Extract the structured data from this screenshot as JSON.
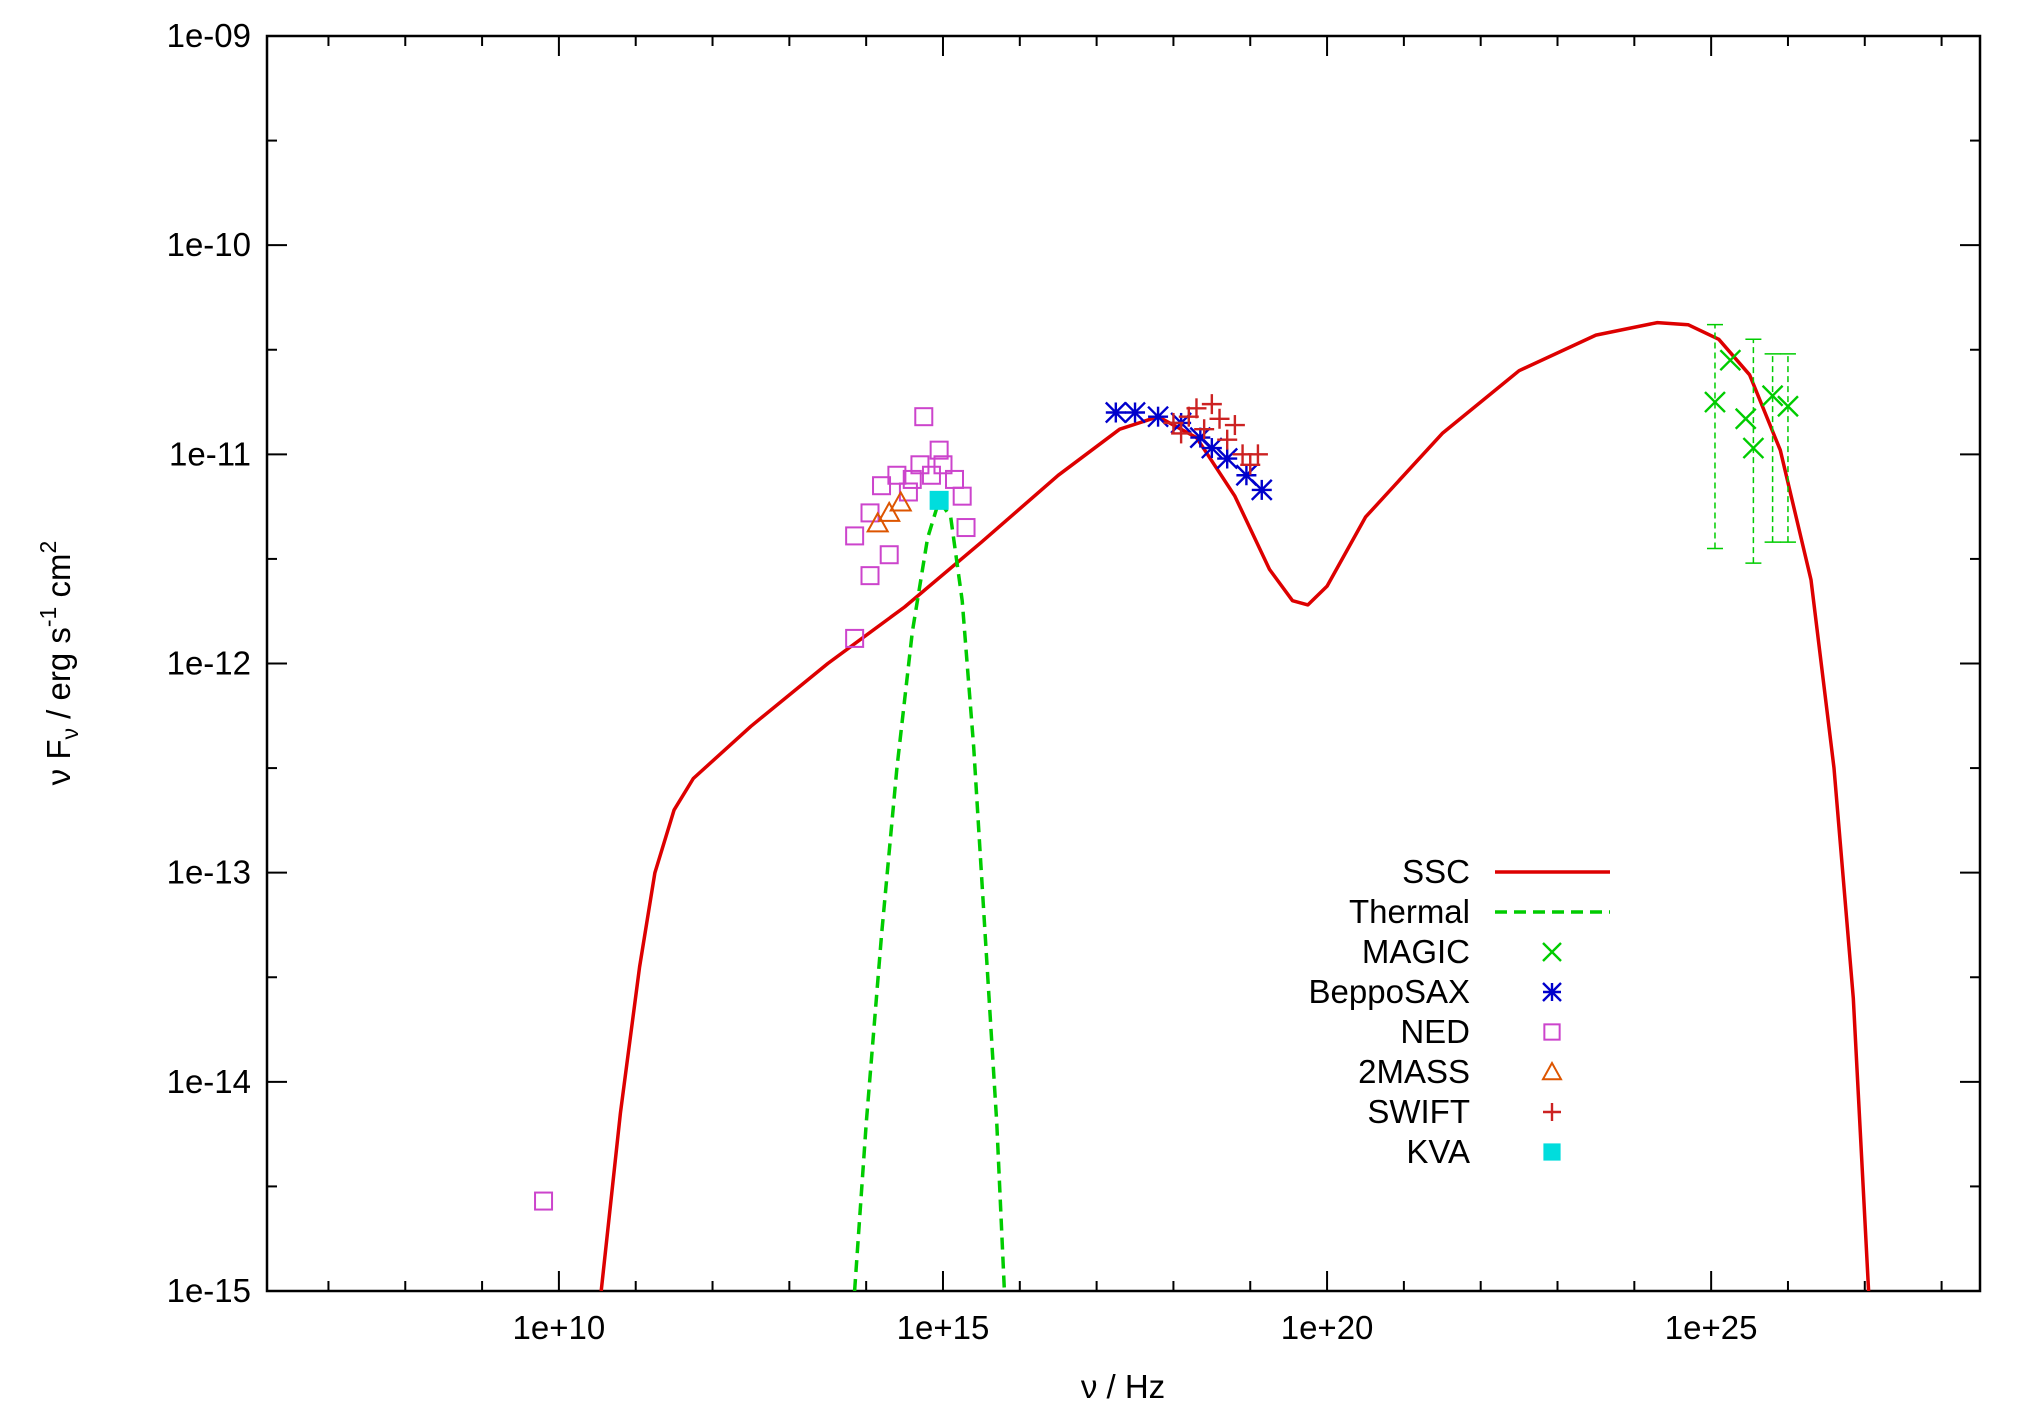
{
  "chart_data": {
    "type": "scatter",
    "title": "",
    "xlabel": "ν / Hz",
    "ylabel_parts": [
      "ν F",
      "ν",
      " / erg s",
      "-1",
      " cm",
      "2"
    ],
    "xscale": "log",
    "yscale": "log",
    "xlim_log10": [
      6.2,
      28.5
    ],
    "ylim_log10": [
      -15,
      -9
    ],
    "x_ticks": [
      {
        "label": "1e+10",
        "log10": 10
      },
      {
        "label": "1e+15",
        "log10": 15
      },
      {
        "label": "1e+20",
        "log10": 20
      },
      {
        "label": "1e+25",
        "log10": 25
      }
    ],
    "y_ticks": [
      {
        "label": "1e-15",
        "log10": -15
      },
      {
        "label": "1e-14",
        "log10": -14
      },
      {
        "label": "1e-13",
        "log10": -13
      },
      {
        "label": "1e-12",
        "log10": -12
      },
      {
        "label": "1e-11",
        "log10": -11
      },
      {
        "label": "1e-10",
        "log10": -10
      },
      {
        "label": "1e-09",
        "log10": -9
      }
    ],
    "grid": false,
    "legend_position": "bottom-right",
    "series": [
      {
        "name": "SSC",
        "kind": "line",
        "color": "#dd0000",
        "dash": "solid",
        "points_log10": [
          [
            10.55,
            -15.0
          ],
          [
            10.8,
            -14.15
          ],
          [
            11.05,
            -13.45
          ],
          [
            11.25,
            -13.0
          ],
          [
            11.5,
            -12.7
          ],
          [
            11.75,
            -12.55
          ],
          [
            12.5,
            -12.3
          ],
          [
            13.5,
            -12.0
          ],
          [
            14.5,
            -11.73
          ],
          [
            15.5,
            -11.42
          ],
          [
            16.5,
            -11.1
          ],
          [
            17.3,
            -10.88
          ],
          [
            17.8,
            -10.82
          ],
          [
            18.3,
            -10.92
          ],
          [
            18.8,
            -11.2
          ],
          [
            19.25,
            -11.55
          ],
          [
            19.55,
            -11.7
          ],
          [
            19.75,
            -11.72
          ],
          [
            20.0,
            -11.63
          ],
          [
            20.5,
            -11.3
          ],
          [
            21.5,
            -10.9
          ],
          [
            22.5,
            -10.6
          ],
          [
            23.5,
            -10.43
          ],
          [
            24.3,
            -10.37
          ],
          [
            24.7,
            -10.38
          ],
          [
            25.1,
            -10.45
          ],
          [
            25.5,
            -10.62
          ],
          [
            25.9,
            -10.98
          ],
          [
            26.3,
            -11.6
          ],
          [
            26.6,
            -12.5
          ],
          [
            26.85,
            -13.6
          ],
          [
            27.05,
            -15.0
          ]
        ]
      },
      {
        "name": "Thermal",
        "kind": "line",
        "color": "#00cc00",
        "dash": "dashed",
        "points_log10": [
          [
            13.85,
            -15.0
          ],
          [
            14.0,
            -14.2
          ],
          [
            14.2,
            -13.3
          ],
          [
            14.4,
            -12.5
          ],
          [
            14.6,
            -11.85
          ],
          [
            14.8,
            -11.4
          ],
          [
            14.95,
            -11.22
          ],
          [
            15.1,
            -11.3
          ],
          [
            15.25,
            -11.7
          ],
          [
            15.4,
            -12.4
          ],
          [
            15.55,
            -13.3
          ],
          [
            15.7,
            -14.2
          ],
          [
            15.8,
            -15.0
          ]
        ]
      },
      {
        "name": "MAGIC",
        "kind": "points",
        "marker": "x",
        "color": "#00cc00",
        "points": [
          {
            "x": 25.05,
            "y": -10.75,
            "ylo": -11.45,
            "yhi": -10.38
          },
          {
            "x": 25.25,
            "y": -10.55
          },
          {
            "x": 25.45,
            "y": -10.83
          },
          {
            "x": 25.55,
            "y": -10.97,
            "ylo": -11.52,
            "yhi": -10.45
          },
          {
            "x": 25.8,
            "y": -10.72,
            "ylo": -11.42,
            "yhi": -10.52
          },
          {
            "x": 26.0,
            "y": -10.77,
            "ylo": -11.42,
            "yhi": -10.52
          }
        ]
      },
      {
        "name": "BeppoSAX",
        "kind": "points",
        "marker": "asterisk",
        "color": "#0000cc",
        "points": [
          {
            "x": 17.25,
            "y": -10.8
          },
          {
            "x": 17.5,
            "y": -10.8
          },
          {
            "x": 17.8,
            "y": -10.82
          },
          {
            "x": 18.1,
            "y": -10.85
          },
          {
            "x": 18.35,
            "y": -10.92
          },
          {
            "x": 18.5,
            "y": -10.97
          },
          {
            "x": 18.7,
            "y": -11.02
          },
          {
            "x": 18.95,
            "y": -11.1
          },
          {
            "x": 19.15,
            "y": -11.17
          }
        ]
      },
      {
        "name": "NED",
        "kind": "points",
        "marker": "square",
        "color": "#cc44cc",
        "points": [
          {
            "x": 9.8,
            "y": -14.57
          },
          {
            "x": 13.85,
            "y": -11.39
          },
          {
            "x": 13.85,
            "y": -11.88
          },
          {
            "x": 14.05,
            "y": -11.28
          },
          {
            "x": 14.05,
            "y": -11.58
          },
          {
            "x": 14.2,
            "y": -11.15
          },
          {
            "x": 14.3,
            "y": -11.48
          },
          {
            "x": 14.4,
            "y": -11.1
          },
          {
            "x": 14.55,
            "y": -11.18
          },
          {
            "x": 14.6,
            "y": -11.12
          },
          {
            "x": 14.7,
            "y": -11.05
          },
          {
            "x": 14.75,
            "y": -10.82
          },
          {
            "x": 14.85,
            "y": -11.1
          },
          {
            "x": 14.95,
            "y": -10.98
          },
          {
            "x": 15.0,
            "y": -11.05
          },
          {
            "x": 15.15,
            "y": -11.12
          },
          {
            "x": 15.25,
            "y": -11.2
          },
          {
            "x": 15.3,
            "y": -11.35
          }
        ]
      },
      {
        "name": "2MASS",
        "kind": "points",
        "marker": "triangle",
        "color": "#dd5500",
        "points": [
          {
            "x": 14.15,
            "y": -11.33
          },
          {
            "x": 14.3,
            "y": -11.28
          },
          {
            "x": 14.45,
            "y": -11.23
          }
        ]
      },
      {
        "name": "SWIFT",
        "kind": "points",
        "marker": "plus",
        "color": "#cc2222",
        "points": [
          {
            "x": 18.0,
            "y": -10.85
          },
          {
            "x": 18.1,
            "y": -10.9
          },
          {
            "x": 18.2,
            "y": -10.82
          },
          {
            "x": 18.3,
            "y": -10.78
          },
          {
            "x": 18.4,
            "y": -10.88
          },
          {
            "x": 18.5,
            "y": -10.76
          },
          {
            "x": 18.6,
            "y": -10.83
          },
          {
            "x": 18.7,
            "y": -10.93
          },
          {
            "x": 18.8,
            "y": -10.86
          },
          {
            "x": 18.9,
            "y": -11.0
          },
          {
            "x": 19.0,
            "y": -11.05
          },
          {
            "x": 19.1,
            "y": -11.0
          }
        ]
      },
      {
        "name": "KVA",
        "kind": "points",
        "marker": "filled-square",
        "color": "#00dddd",
        "points": [
          {
            "x": 14.95,
            "y": -11.22
          }
        ]
      }
    ],
    "legend": [
      {
        "name": "SSC",
        "kind": "line",
        "color": "#dd0000",
        "dash": "solid"
      },
      {
        "name": "Thermal",
        "kind": "line",
        "color": "#00cc00",
        "dash": "dashed"
      },
      {
        "name": "MAGIC",
        "kind": "marker",
        "marker": "x",
        "color": "#00cc00"
      },
      {
        "name": "BeppoSAX",
        "kind": "marker",
        "marker": "asterisk",
        "color": "#0000cc"
      },
      {
        "name": "NED",
        "kind": "marker",
        "marker": "square",
        "color": "#cc44cc"
      },
      {
        "name": "2MASS",
        "kind": "marker",
        "marker": "triangle",
        "color": "#dd5500"
      },
      {
        "name": "SWIFT",
        "kind": "marker",
        "marker": "plus",
        "color": "#cc2222"
      },
      {
        "name": "KVA",
        "kind": "marker",
        "marker": "filled-square",
        "color": "#00dddd"
      }
    ]
  }
}
